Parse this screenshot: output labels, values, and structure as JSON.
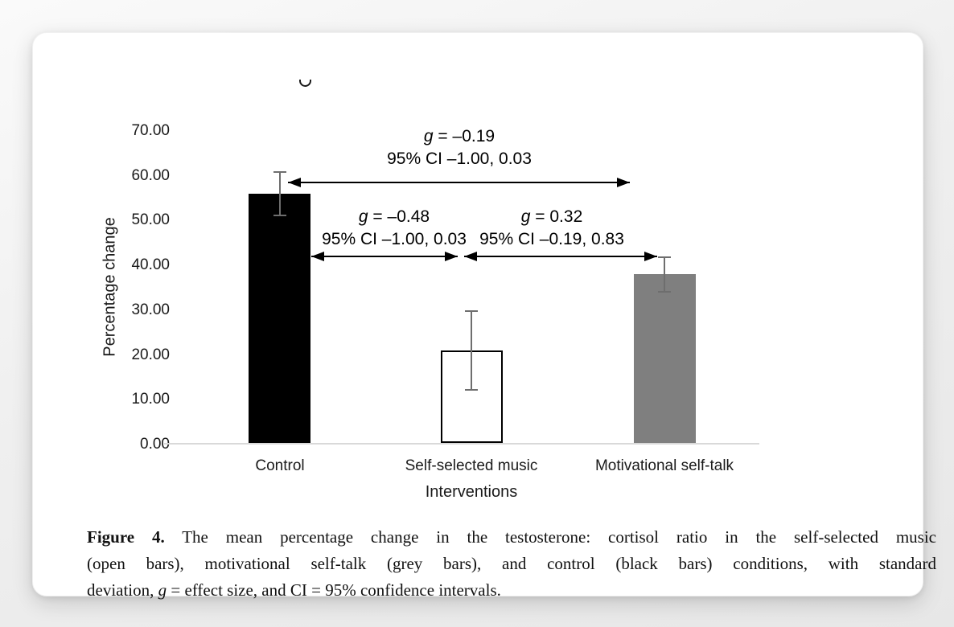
{
  "chart_data": {
    "type": "bar",
    "title": "",
    "ylabel": "Percentage change",
    "xlabel": "Interventions",
    "categories": [
      "Control",
      "Self-selected music",
      "Motivational self-talk"
    ],
    "values": [
      56,
      21,
      38
    ],
    "error_upper": [
      61,
      30,
      42
    ],
    "error_lower": [
      51,
      12,
      34
    ],
    "ylim": [
      0,
      70
    ],
    "ytick_labels": [
      "70.00",
      "60.00",
      "50.00",
      "40.00",
      "30.00",
      "20.00",
      "10.00",
      "0.00"
    ],
    "grid": "off",
    "bar_styles": [
      {
        "name": "control-black",
        "fill": "#000000",
        "border": "#000000"
      },
      {
        "name": "music-open",
        "fill": "#ffffff",
        "border": "#000000"
      },
      {
        "name": "selftalk-grey",
        "fill": "#7f7f7f",
        "border": "#7f7f7f"
      }
    ],
    "annotations": [
      {
        "between": [
          "Control",
          "Motivational self-talk"
        ],
        "g": "g",
        "g_text": " = –0.19",
        "ci_text": "95% CI –1.00, 0.03"
      },
      {
        "between": [
          "Control",
          "Self-selected music"
        ],
        "g": "g",
        "g_text": " = –0.48",
        "ci_text": "95% CI –1.00, 0.03"
      },
      {
        "between": [
          "Self-selected music",
          "Motivational self-talk"
        ],
        "g": "g",
        "g_text": " = 0.32",
        "ci_text": "95% CI –0.19, 0.83"
      }
    ]
  },
  "caption": {
    "label": "Figure 4.",
    "line1_rest": " The mean percentage change in the testosterone: cortisol ratio in the self-selected music",
    "line2": "(open bars), motivational self-talk (grey bars), and control (black bars) conditions, with standard",
    "line3_pre": "deviation, ",
    "line3_g": "g",
    "line3_post": " = effect size, and CI = 95% confidence intervals."
  },
  "colors": {
    "axis_line": "#d9d9d9",
    "error_bar": "#6e6e6e",
    "text": "#1a1a1a",
    "card_bg": "#ffffff",
    "page_bg": "#ececec"
  }
}
